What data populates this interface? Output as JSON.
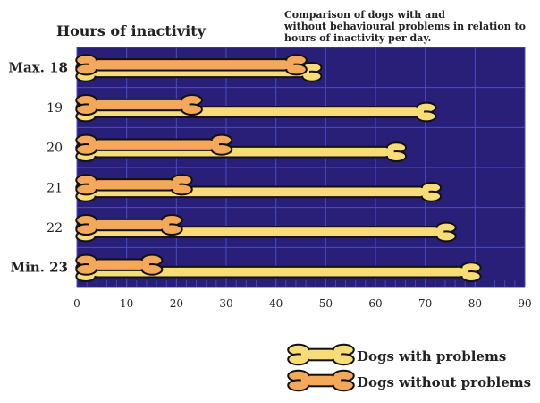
{
  "chart_data": {
    "type": "bar",
    "title": "Comparison of dogs with and without behavioural problems in relation to hours of inactivity per day.",
    "axis_title": "Hours of inactivity",
    "categories": [
      "Max. 18",
      "19",
      "20",
      "21",
      "22",
      "Min. 23"
    ],
    "series": [
      {
        "name": "Dogs with problems",
        "values": [
          49,
          72,
          66,
          73,
          76,
          81
        ]
      },
      {
        "name": "Dogs without problems",
        "values": [
          46,
          25,
          31,
          23,
          21,
          17
        ]
      }
    ],
    "xlim": [
      0,
      90
    ],
    "xticks": [
      "0",
      "10",
      "20",
      "30",
      "40",
      "50",
      "60",
      "70",
      "80",
      "90"
    ],
    "grid": true,
    "legend_position": "bottom-right",
    "colors": {
      "plot_bg": "#2a1f78",
      "grid": "#4a4cc8",
      "with_problems": "#f8dc78",
      "without_problems": "#f4a85a",
      "outline": "#111111"
    }
  }
}
